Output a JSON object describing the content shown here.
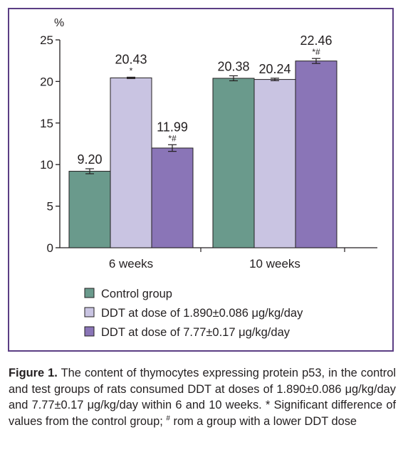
{
  "chart_data": {
    "type": "bar",
    "ylabel": "%",
    "ylim": [
      0,
      25
    ],
    "yticks": [
      0,
      5,
      10,
      15,
      20,
      25
    ],
    "categories": [
      "6 weeks",
      "10 weeks"
    ],
    "series": [
      {
        "name": "Control group",
        "color": "#6a9a8c",
        "values": [
          9.2,
          20.38
        ],
        "labels": [
          "9.20",
          "20.38"
        ],
        "errors": [
          0.3,
          0.3
        ],
        "marks": [
          "",
          ""
        ]
      },
      {
        "name": "DDT at dose of 1.890±0.086 μg/kg/day",
        "color": "#c9c4e2",
        "values": [
          20.43,
          20.24
        ],
        "labels": [
          "20.43",
          "20.24"
        ],
        "errors": [
          0.08,
          0.15
        ],
        "marks": [
          "*",
          ""
        ]
      },
      {
        "name": "DDT at dose of 7.77±0.17 μg/kg/day",
        "color": "#8a75b7",
        "values": [
          11.99,
          22.46
        ],
        "labels": [
          "11.99",
          "22.46"
        ],
        "errors": [
          0.4,
          0.3
        ],
        "marks": [
          "*#",
          "*#"
        ]
      }
    ]
  },
  "caption": {
    "label": "Figure 1.",
    "text_a": " The content of thymocytes expressing protein p53, in the control and test groups of rats consumed DDT at doses of 1.890±0.086 μg/kg/day and 7.77±0.17 μg/kg/day within 6 and 10 weeks. * Significant difference of values from the control group; ",
    "sup": "#",
    "text_b": " rom a group with a lower DDT dose"
  }
}
